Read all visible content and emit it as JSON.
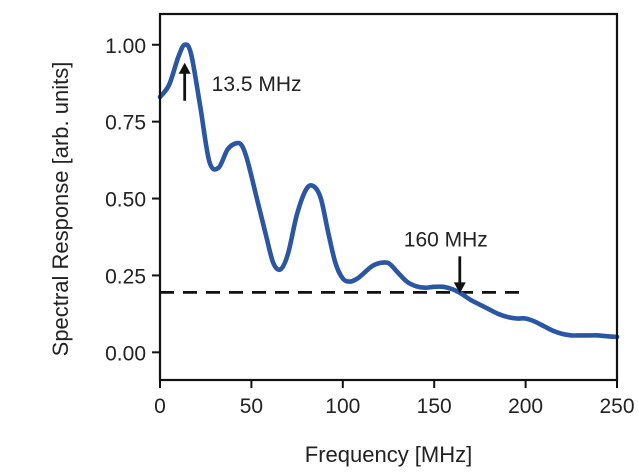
{
  "chart_data": {
    "type": "line",
    "title": "",
    "xlabel": "Frequency [MHz]",
    "ylabel": "Spectral Response [arb. units]",
    "xlim": [
      0,
      250
    ],
    "ylim": [
      -0.09,
      1.1
    ],
    "x_ticks": [
      0,
      50,
      100,
      150,
      200,
      250
    ],
    "x_tick_labels": [
      "0",
      "50",
      "100",
      "150",
      "200",
      "250"
    ],
    "y_ticks": [
      0,
      0.25,
      0.5,
      0.75,
      1
    ],
    "y_tick_labels": [
      "0.00",
      "0.25",
      "0.50",
      "0.75",
      "1.00"
    ],
    "grid": false,
    "legend": "none",
    "series": [
      {
        "color": "#2a56a4",
        "x": [
          0,
          5,
          10,
          13.5,
          17,
          22,
          27,
          32,
          37,
          42,
          45,
          48,
          53,
          58,
          62,
          66,
          70,
          75,
          80,
          84,
          88,
          92,
          96,
          100,
          104,
          108,
          112,
          116,
          120,
          125,
          130,
          135,
          140,
          145,
          150,
          155,
          160,
          165,
          170,
          175,
          180,
          185,
          190,
          195,
          200,
          205,
          210,
          215,
          220,
          225,
          230,
          235,
          240,
          245,
          250
        ],
        "y": [
          0.83,
          0.87,
          0.96,
          1.0,
          0.97,
          0.8,
          0.62,
          0.6,
          0.66,
          0.68,
          0.67,
          0.62,
          0.5,
          0.38,
          0.29,
          0.27,
          0.32,
          0.45,
          0.53,
          0.54,
          0.5,
          0.39,
          0.29,
          0.24,
          0.23,
          0.24,
          0.26,
          0.28,
          0.29,
          0.29,
          0.26,
          0.23,
          0.215,
          0.21,
          0.213,
          0.213,
          0.205,
          0.19,
          0.17,
          0.155,
          0.14,
          0.125,
          0.115,
          0.11,
          0.11,
          0.1,
          0.085,
          0.07,
          0.06,
          0.055,
          0.055,
          0.055,
          0.055,
          0.052,
          0.05
        ]
      }
    ],
    "reference_lines": [
      {
        "orientation": "horizontal",
        "y": 0.195,
        "x_range": [
          0,
          197
        ],
        "style": "dashed",
        "color": "#111111"
      }
    ],
    "annotations": [
      {
        "text": "13.5 MHz",
        "x": 13.5,
        "y": 1.0,
        "arrow": "up"
      },
      {
        "text": "160 MHz",
        "x": 164,
        "y": 0.195,
        "arrow": "down"
      }
    ]
  }
}
